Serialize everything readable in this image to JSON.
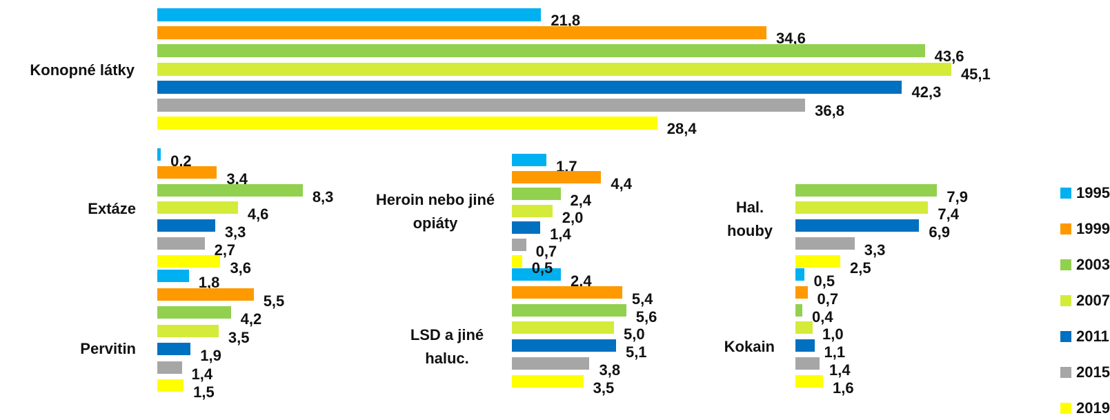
{
  "chart_data": {
    "type": "bar",
    "orientation": "horizontal",
    "categories": [
      "Konopné látky",
      "Extáze",
      "Heroin nebo jiné opiáty",
      "Hal. houby",
      "Pervitin",
      "LSD a jiné haluc.",
      "Kokain"
    ],
    "series": [
      {
        "name": "1995",
        "color": "#00b0f0",
        "values": [
          21.8,
          0.2,
          1.7,
          null,
          1.8,
          2.4,
          0.5
        ],
        "value_labels": [
          "21,8",
          "0,2",
          "1,7",
          null,
          "1,8",
          "2,4",
          "0,5"
        ]
      },
      {
        "name": "1999",
        "color": "#ff9900",
        "values": [
          34.6,
          3.4,
          4.4,
          null,
          5.5,
          5.4,
          0.7
        ],
        "value_labels": [
          "34,6",
          "3,4",
          "4,4",
          null,
          "5,5",
          "5,4",
          "0,7"
        ]
      },
      {
        "name": "2003",
        "color": "#92d050",
        "values": [
          43.6,
          8.3,
          2.4,
          7.9,
          4.2,
          5.6,
          0.4
        ],
        "value_labels": [
          "43,6",
          "8,3",
          "2,4",
          "7,9",
          "4,2",
          "5,6",
          "0,4"
        ]
      },
      {
        "name": "2007",
        "color": "#d4eb3a",
        "values": [
          45.1,
          4.6,
          2.0,
          7.4,
          3.5,
          5.0,
          1.0
        ],
        "value_labels": [
          "45,1",
          "4,6",
          "2,0",
          "7,4",
          "3,5",
          "5,0",
          "1,0"
        ]
      },
      {
        "name": "2011",
        "color": "#0070c0",
        "values": [
          42.3,
          3.3,
          1.4,
          6.9,
          1.9,
          5.1,
          1.1
        ],
        "value_labels": [
          "42,3",
          "3,3",
          "1,4",
          "6,9",
          "1,9",
          "5,1",
          "1,1"
        ]
      },
      {
        "name": "2015",
        "color": "#a6a6a6",
        "values": [
          36.8,
          2.7,
          0.7,
          3.3,
          1.4,
          3.8,
          1.4
        ],
        "value_labels": [
          "36,8",
          "2,7",
          "0,7",
          "3,3",
          "1,4",
          "3,8",
          "1,4"
        ]
      },
      {
        "name": "2019",
        "color": "#ffff00",
        "values": [
          28.4,
          3.6,
          0.5,
          2.5,
          1.5,
          3.5,
          1.6
        ],
        "value_labels": [
          "28,4",
          "3,6",
          "0,5",
          "2,5",
          "1,5",
          "3,5",
          "1,6"
        ]
      }
    ],
    "legend": "right"
  }
}
